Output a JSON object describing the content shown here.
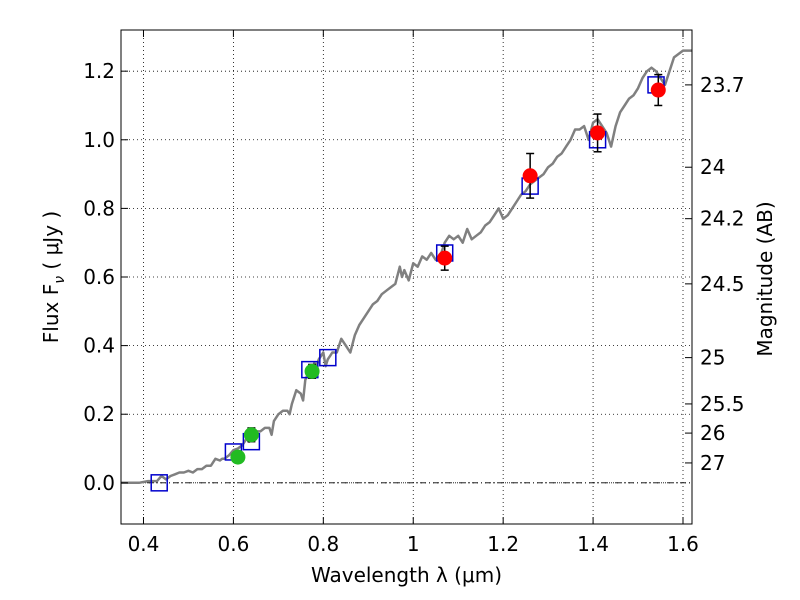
{
  "chart_data": {
    "type": "scatter",
    "xlabel": "Wavelength  λ (μm)",
    "ylabel": "Flux  F_ν  ( μJy )",
    "y2label": "Magnitude (AB)",
    "xlim": [
      0.35,
      1.62
    ],
    "ylim": [
      -0.12,
      1.32
    ],
    "grid": true,
    "x_ticks": [
      {
        "value": 0.4,
        "label": "0.4"
      },
      {
        "value": 0.6,
        "label": "0.6"
      },
      {
        "value": 0.8,
        "label": "0.8"
      },
      {
        "value": 1.0,
        "label": "1"
      },
      {
        "value": 1.2,
        "label": "1.2"
      },
      {
        "value": 1.4,
        "label": "1.4"
      },
      {
        "value": 1.6,
        "label": "1.6"
      }
    ],
    "y_ticks": [
      {
        "value": 0.0,
        "label": "0.0"
      },
      {
        "value": 0.2,
        "label": "0.2"
      },
      {
        "value": 0.4,
        "label": "0.4"
      },
      {
        "value": 0.6,
        "label": "0.6"
      },
      {
        "value": 0.8,
        "label": "0.8"
      },
      {
        "value": 1.0,
        "label": "1.0"
      },
      {
        "value": 1.2,
        "label": "1.2"
      }
    ],
    "y2_ticks": [
      {
        "flux": 1.16,
        "label": "23.7"
      },
      {
        "flux": 0.92,
        "label": "24"
      },
      {
        "flux": 0.77,
        "label": "24.2"
      },
      {
        "flux": 0.58,
        "label": "24.5"
      },
      {
        "flux": 0.365,
        "label": "25"
      },
      {
        "flux": 0.23,
        "label": "25.5"
      },
      {
        "flux": 0.145,
        "label": "26"
      },
      {
        "flux": 0.058,
        "label": "27"
      }
    ],
    "series": [
      {
        "kind": "line",
        "color": "#808080",
        "x": [
          0.35,
          0.37,
          0.39,
          0.41,
          0.43,
          0.44,
          0.45,
          0.46,
          0.47,
          0.48,
          0.49,
          0.5,
          0.51,
          0.52,
          0.53,
          0.54,
          0.55,
          0.56,
          0.57,
          0.575,
          0.58,
          0.59,
          0.6,
          0.61,
          0.62,
          0.63,
          0.635,
          0.64,
          0.65,
          0.66,
          0.67,
          0.68,
          0.685,
          0.69,
          0.7,
          0.71,
          0.72,
          0.725,
          0.73,
          0.74,
          0.75,
          0.755,
          0.76,
          0.77,
          0.775,
          0.78,
          0.785,
          0.79,
          0.8,
          0.805,
          0.81,
          0.815,
          0.82,
          0.83,
          0.84,
          0.85,
          0.86,
          0.87,
          0.88,
          0.89,
          0.9,
          0.91,
          0.92,
          0.93,
          0.94,
          0.95,
          0.96,
          0.97,
          0.975,
          0.98,
          0.99,
          1.0,
          1.01,
          1.02,
          1.03,
          1.04,
          1.05,
          1.06,
          1.07,
          1.08,
          1.09,
          1.1,
          1.11,
          1.12,
          1.13,
          1.14,
          1.15,
          1.16,
          1.17,
          1.18,
          1.19,
          1.2,
          1.21,
          1.22,
          1.23,
          1.24,
          1.25,
          1.26,
          1.27,
          1.28,
          1.29,
          1.3,
          1.31,
          1.32,
          1.33,
          1.34,
          1.35,
          1.36,
          1.37,
          1.38,
          1.39,
          1.4,
          1.41,
          1.42,
          1.43,
          1.44,
          1.45,
          1.46,
          1.47,
          1.48,
          1.49,
          1.5,
          1.51,
          1.52,
          1.53,
          1.54,
          1.55,
          1.56,
          1.57,
          1.58,
          1.59,
          1.6,
          1.61,
          1.62
        ],
        "y": [
          0.0,
          0.0,
          0.0,
          0.005,
          0.005,
          0.02,
          0.01,
          0.02,
          0.025,
          0.03,
          0.03,
          0.035,
          0.03,
          0.04,
          0.04,
          0.05,
          0.05,
          0.07,
          0.065,
          0.07,
          0.07,
          0.08,
          0.095,
          0.1,
          0.11,
          0.13,
          0.12,
          0.14,
          0.15,
          0.15,
          0.16,
          0.16,
          0.14,
          0.18,
          0.2,
          0.21,
          0.21,
          0.2,
          0.23,
          0.27,
          0.26,
          0.24,
          0.3,
          0.33,
          0.31,
          0.35,
          0.34,
          0.36,
          0.38,
          0.34,
          0.36,
          0.37,
          0.38,
          0.38,
          0.42,
          0.4,
          0.38,
          0.43,
          0.46,
          0.48,
          0.5,
          0.52,
          0.53,
          0.55,
          0.56,
          0.57,
          0.58,
          0.63,
          0.6,
          0.62,
          0.59,
          0.64,
          0.63,
          0.66,
          0.65,
          0.67,
          0.65,
          0.66,
          0.7,
          0.72,
          0.71,
          0.72,
          0.7,
          0.74,
          0.71,
          0.72,
          0.73,
          0.75,
          0.76,
          0.78,
          0.8,
          0.77,
          0.78,
          0.8,
          0.82,
          0.84,
          0.85,
          0.87,
          0.88,
          0.89,
          0.9,
          0.92,
          0.93,
          0.95,
          0.96,
          0.98,
          1.0,
          1.03,
          1.03,
          1.04,
          1.0,
          1.05,
          1.06,
          1.04,
          1.02,
          0.98,
          1.04,
          1.08,
          1.1,
          1.12,
          1.13,
          1.15,
          1.18,
          1.2,
          1.21,
          1.2,
          1.18,
          1.16,
          1.2,
          1.24,
          1.25,
          1.26,
          1.26,
          1.26
        ]
      },
      {
        "kind": "squares",
        "color": "#0000cc",
        "x": [
          0.435,
          0.6,
          0.64,
          0.77,
          0.81,
          1.07,
          1.26,
          1.41,
          1.54
        ],
        "y": [
          0.0,
          0.09,
          0.12,
          0.33,
          0.365,
          0.67,
          0.865,
          1.0,
          1.16
        ]
      },
      {
        "kind": "points",
        "color": "#22bb22",
        "x": [
          0.61,
          0.64,
          0.775
        ],
        "y": [
          0.075,
          0.14,
          0.325
        ],
        "yerr": [
          0.015,
          0.02,
          0.02
        ]
      },
      {
        "kind": "points",
        "color": "#ff0000",
        "x": [
          1.07,
          1.26,
          1.41,
          1.545
        ],
        "y": [
          0.655,
          0.895,
          1.02,
          1.145
        ],
        "yerr": [
          0.035,
          0.065,
          0.055,
          0.045
        ]
      }
    ],
    "hline": {
      "y": 0.0,
      "style": "dash-dot"
    }
  }
}
